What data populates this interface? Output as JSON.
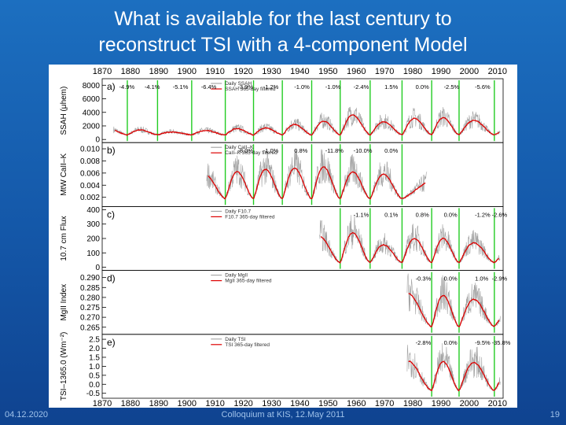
{
  "slide": {
    "title_line1": "What is available for the last century to",
    "title_line2": "reconstruct TSI with a 4-component Model",
    "footer_date": "04.12.2020",
    "footer_center": "Colloquium at KIS, 12.May 2011",
    "page_number": "19"
  },
  "chart_data": {
    "type": "line",
    "x_ticks": [
      "1870",
      "1880",
      "1890",
      "1900",
      "1910",
      "1920",
      "1930",
      "1940",
      "1950",
      "1960",
      "1970",
      "1980",
      "1990",
      "2000",
      "2010"
    ],
    "xlim": [
      1870,
      2012
    ],
    "grid": false,
    "minimum_markers_color": "#22cc22",
    "daily_color": "#999999",
    "filtered_color": "#dd0000",
    "minima_years": [
      1878.9,
      1889.6,
      1901.7,
      1913.6,
      1923.6,
      1933.8,
      1944.2,
      1954.3,
      1964.9,
      1976.2,
      1986.7,
      1996.4,
      2008.9
    ],
    "panels": [
      {
        "id": "ssa",
        "panel_letter": "a)",
        "ylabel": "SSAH (μhem)",
        "yticks": [
          "0",
          "2000",
          "4000",
          "6000",
          "8000"
        ],
        "ylim": [
          0,
          8500
        ],
        "legend": [
          "Daily SSAH",
          "SSAH 365-day filtered"
        ],
        "x_start": 1874,
        "cycle_minima": [
          1878.9,
          1889.6,
          1901.7,
          1913.6,
          1923.6,
          1933.8,
          1944.2,
          1954.3,
          1964.9,
          1976.2,
          1986.7,
          1996.4,
          2008.9
        ],
        "cycle_peaks": [
          1500,
          1400,
          1100,
          1300,
          1600,
          1700,
          2200,
          2700,
          3600,
          2600,
          3100,
          3200,
          2800,
          1400
        ],
        "annotations": [
          {
            "year": 1876,
            "text": "-4.9%"
          },
          {
            "year": 1885,
            "text": "-4.1%"
          },
          {
            "year": 1895,
            "text": "-5.1%"
          },
          {
            "year": 1905,
            "text": "-6.4%"
          },
          {
            "year": 1918,
            "text": "-3.9%"
          },
          {
            "year": 1927,
            "text": "-1.2%"
          },
          {
            "year": 1938,
            "text": "-1.0%"
          },
          {
            "year": 1949,
            "text": "-1.0%"
          },
          {
            "year": 1959,
            "text": "-2.4%"
          },
          {
            "year": 1970,
            "text": "1.5%"
          },
          {
            "year": 1981,
            "text": "0.0%"
          },
          {
            "year": 1991,
            "text": "-2.5%"
          },
          {
            "year": 2002,
            "text": "-5.6%"
          }
        ]
      },
      {
        "id": "cak",
        "panel_letter": "b)",
        "ylabel": "MtW CaII–K",
        "yticks": [
          "0.002",
          "0.004",
          "0.006",
          "0.008",
          "0.010"
        ],
        "ylim": [
          0.001,
          0.0105
        ],
        "legend": [
          "Daily CaII–K",
          "CaII–K 365-day filtered"
        ],
        "x_start": 1907,
        "x_end": 1985,
        "cycle_minima": [
          1913.6,
          1923.6,
          1933.8,
          1944.2,
          1954.3,
          1964.9,
          1976.2
        ],
        "cycle_peaks": [
          0.0058,
          0.0062,
          0.0066,
          0.0068,
          0.007,
          0.0062,
          0.0058,
          0.006
        ],
        "annotations": [
          {
            "year": 1918,
            "text": "-8.0%"
          },
          {
            "year": 1927,
            "text": "-1.0%"
          },
          {
            "year": 1938,
            "text": "0.8%"
          },
          {
            "year": 1949,
            "text": "-11.8%"
          },
          {
            "year": 1959,
            "text": "-10.0%"
          },
          {
            "year": 1970,
            "text": "0.0%"
          }
        ]
      },
      {
        "id": "f107",
        "panel_letter": "c)",
        "ylabel": "10.7 cm Flux",
        "yticks": [
          "0",
          "100",
          "200",
          "300",
          "400"
        ],
        "ylim": [
          0,
          400
        ],
        "legend": [
          "Daily F10.7",
          "F10.7 365-day filtered"
        ],
        "x_start": 1947,
        "cycle_minima": [
          1954.3,
          1964.9,
          1976.2,
          1986.7,
          1996.4,
          2008.9
        ],
        "cycle_peaks": [
          220,
          240,
          155,
          200,
          200,
          170,
          100
        ],
        "annotations": [
          {
            "year": 1959,
            "text": "-1.1%"
          },
          {
            "year": 1970,
            "text": "0.1%"
          },
          {
            "year": 1981,
            "text": "0.8%"
          },
          {
            "year": 1991,
            "text": "0.0%"
          },
          {
            "year": 2002,
            "text": "-1.2%"
          },
          {
            "year": 2008,
            "text": "-2.6%"
          }
        ]
      },
      {
        "id": "mgii",
        "panel_letter": "d)",
        "ylabel": "MgII Index",
        "yticks": [
          "0.265",
          "0.270",
          "0.275",
          "0.280",
          "0.285",
          "0.290"
        ],
        "ylim": [
          0.263,
          0.292
        ],
        "legend": [
          "Daily MgII",
          "MgII 365-day filtered"
        ],
        "x_start": 1978,
        "cycle_minima": [
          1986.7,
          1996.4,
          2008.9
        ],
        "cycle_peaks": [
          0.282,
          0.281,
          0.279,
          0.272
        ],
        "annotations": [
          {
            "year": 1981,
            "text": "-0.3%"
          },
          {
            "year": 1991,
            "text": "0.0%"
          },
          {
            "year": 2002,
            "text": "1.0%"
          },
          {
            "year": 2008,
            "text": "-2.9%"
          }
        ]
      },
      {
        "id": "tsi",
        "panel_letter": "e)",
        "ylabel": "TSI–1365.0 (Wm⁻²)",
        "yticks": [
          "-0.5",
          "0.0",
          "0.5",
          "1.0",
          "1.5",
          "2.0",
          "2.5"
        ],
        "ylim": [
          -0.6,
          2.6
        ],
        "legend": [
          "Daily TSI",
          "TSI 365-day filtered"
        ],
        "x_start": 1978,
        "cycle_minima": [
          1986.7,
          1996.4,
          2008.9
        ],
        "cycle_peaks": [
          1.3,
          1.25,
          1.2,
          0.6
        ],
        "annotations": [
          {
            "year": 1981,
            "text": "-2.8%"
          },
          {
            "year": 1991,
            "text": "0.0%"
          },
          {
            "year": 2002,
            "text": "-9.5%"
          },
          {
            "year": 2008,
            "text": "-35.8%"
          }
        ]
      }
    ]
  }
}
